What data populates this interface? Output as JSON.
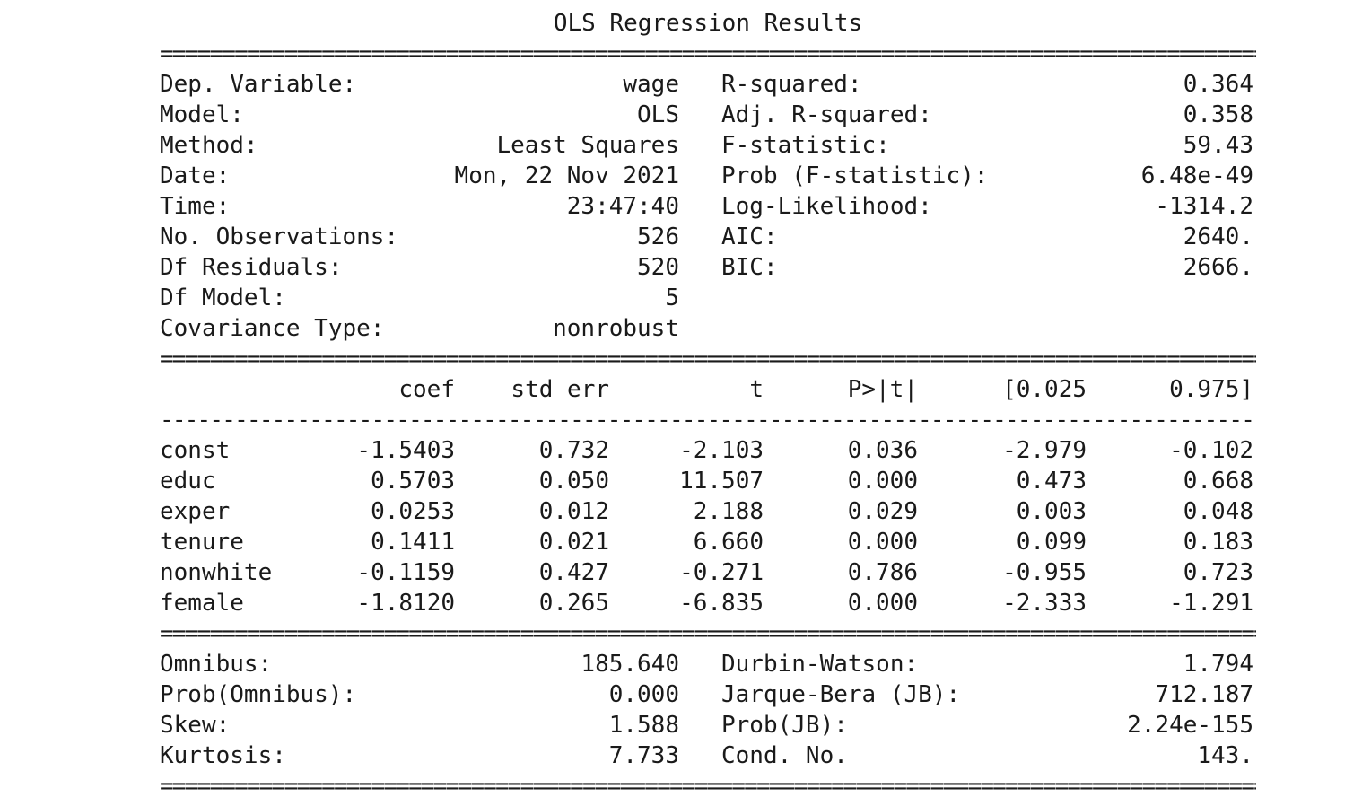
{
  "title": "OLS Regression Results",
  "double_rule": "===================================================================================================",
  "single_rule": "---------------------------------------------------------------------------------------------------",
  "model_info": [
    {
      "label": "Dep. Variable:",
      "value": "wage",
      "label2": "R-squared:",
      "value2": "0.364"
    },
    {
      "label": "Model:",
      "value": "OLS",
      "label2": "Adj. R-squared:",
      "value2": "0.358"
    },
    {
      "label": "Method:",
      "value": "Least Squares",
      "label2": "F-statistic:",
      "value2": "59.43"
    },
    {
      "label": "Date:",
      "value": "Mon, 22 Nov 2021",
      "label2": "Prob (F-statistic):",
      "value2": "6.48e-49"
    },
    {
      "label": "Time:",
      "value": "23:47:40",
      "label2": "Log-Likelihood:",
      "value2": "-1314.2"
    },
    {
      "label": "No. Observations:",
      "value": "526",
      "label2": "AIC:",
      "value2": "2640."
    },
    {
      "label": "Df Residuals:",
      "value": "520",
      "label2": "BIC:",
      "value2": "2666."
    },
    {
      "label": "Df Model:",
      "value": "5",
      "label2": "",
      "value2": ""
    },
    {
      "label": "Covariance Type:",
      "value": "nonrobust",
      "label2": "",
      "value2": ""
    }
  ],
  "coef_header": [
    "coef",
    "std err",
    "t",
    "P>|t|",
    "[0.025",
    "0.975]"
  ],
  "coef_rows": [
    {
      "name": "const",
      "coef": "-1.5403",
      "std_err": "0.732",
      "t": "-2.103",
      "p": "0.036",
      "lo": "-2.979",
      "hi": "-0.102"
    },
    {
      "name": "educ",
      "coef": "0.5703",
      "std_err": "0.050",
      "t": "11.507",
      "p": "0.000",
      "lo": "0.473",
      "hi": "0.668"
    },
    {
      "name": "exper",
      "coef": "0.0253",
      "std_err": "0.012",
      "t": "2.188",
      "p": "0.029",
      "lo": "0.003",
      "hi": "0.048"
    },
    {
      "name": "tenure",
      "coef": "0.1411",
      "std_err": "0.021",
      "t": "6.660",
      "p": "0.000",
      "lo": "0.099",
      "hi": "0.183"
    },
    {
      "name": "nonwhite",
      "coef": "-0.1159",
      "std_err": "0.427",
      "t": "-0.271",
      "p": "0.786",
      "lo": "-0.955",
      "hi": "0.723"
    },
    {
      "name": "female",
      "coef": "-1.8120",
      "std_err": "0.265",
      "t": "-6.835",
      "p": "0.000",
      "lo": "-2.333",
      "hi": "-1.291"
    }
  ],
  "diagnostics": [
    {
      "label": "Omnibus:",
      "value": "185.640",
      "label2": "Durbin-Watson:",
      "value2": "1.794"
    },
    {
      "label": "Prob(Omnibus):",
      "value": "0.000",
      "label2": "Jarque-Bera (JB):",
      "value2": "712.187"
    },
    {
      "label": "Skew:",
      "value": "1.588",
      "label2": "Prob(JB):",
      "value2": "2.24e-155"
    },
    {
      "label": "Kurtosis:",
      "value": "7.733",
      "label2": "Cond. No.",
      "value2": "143."
    }
  ]
}
